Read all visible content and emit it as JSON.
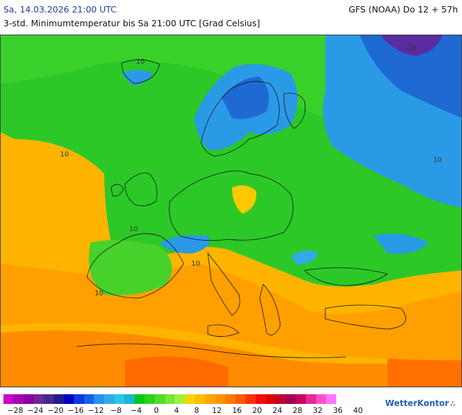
{
  "header": {
    "date_label": "Sa, 14.03.2026 21:00 UTC",
    "model_label": "GFS (NOAA) Do 12 + 57h",
    "subtitle": "3-std. Minimumtemperatur bis Sa 21:00 UTC [Grad Celsius]"
  },
  "map": {
    "contour_labels": [
      "-20",
      "10",
      "10",
      "10",
      "10",
      "10",
      "10"
    ]
  },
  "legend": {
    "colors": [
      "#c800c8",
      "#a800b4",
      "#8c00a0",
      "#6e2896",
      "#46288c",
      "#1e1e8c",
      "#0000c8",
      "#0a3cdc",
      "#1464e6",
      "#2890f0",
      "#32aae6",
      "#28c8e6",
      "#1eb4d2",
      "#00c814",
      "#28d21e",
      "#50dc28",
      "#78e632",
      "#a0f03c",
      "#ffd200",
      "#ffbe00",
      "#ffa500",
      "#ff9100",
      "#ff7800",
      "#ff5a00",
      "#ff3200",
      "#f50a0a",
      "#dc0000",
      "#be0032",
      "#a00050",
      "#c80064",
      "#e6289b",
      "#ff50c8",
      "#ff78ff"
    ],
    "ticks": [
      "−28",
      "−24",
      "−20",
      "−16",
      "−12",
      "−8",
      "−4",
      "0",
      "4",
      "8",
      "12",
      "16",
      "20",
      "24",
      "28",
      "32",
      "36",
      "40"
    ]
  },
  "brand": {
    "name": "WetterKontor",
    "mark": "∴"
  }
}
